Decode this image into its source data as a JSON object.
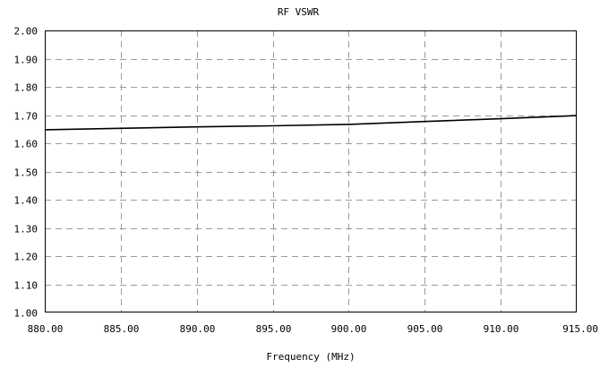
{
  "chart_data": {
    "type": "line",
    "title": "RF VSWR",
    "xlabel": "Frequency (MHz)",
    "ylabel": "",
    "xlim": [
      880,
      915
    ],
    "ylim": [
      1.0,
      2.0
    ],
    "x_ticks": [
      "880.00",
      "885.00",
      "890.00",
      "895.00",
      "900.00",
      "905.00",
      "910.00",
      "915.00"
    ],
    "y_ticks": [
      "1.00",
      "1.10",
      "1.20",
      "1.30",
      "1.40",
      "1.50",
      "1.60",
      "1.70",
      "1.80",
      "1.90",
      "2.00"
    ],
    "grid": true,
    "series": [
      {
        "x": [
          880,
          885,
          890,
          895,
          900,
          905,
          910,
          915
        ],
        "y": [
          1.648,
          1.653,
          1.658,
          1.662,
          1.667,
          1.677,
          1.687,
          1.698
        ]
      }
    ]
  }
}
